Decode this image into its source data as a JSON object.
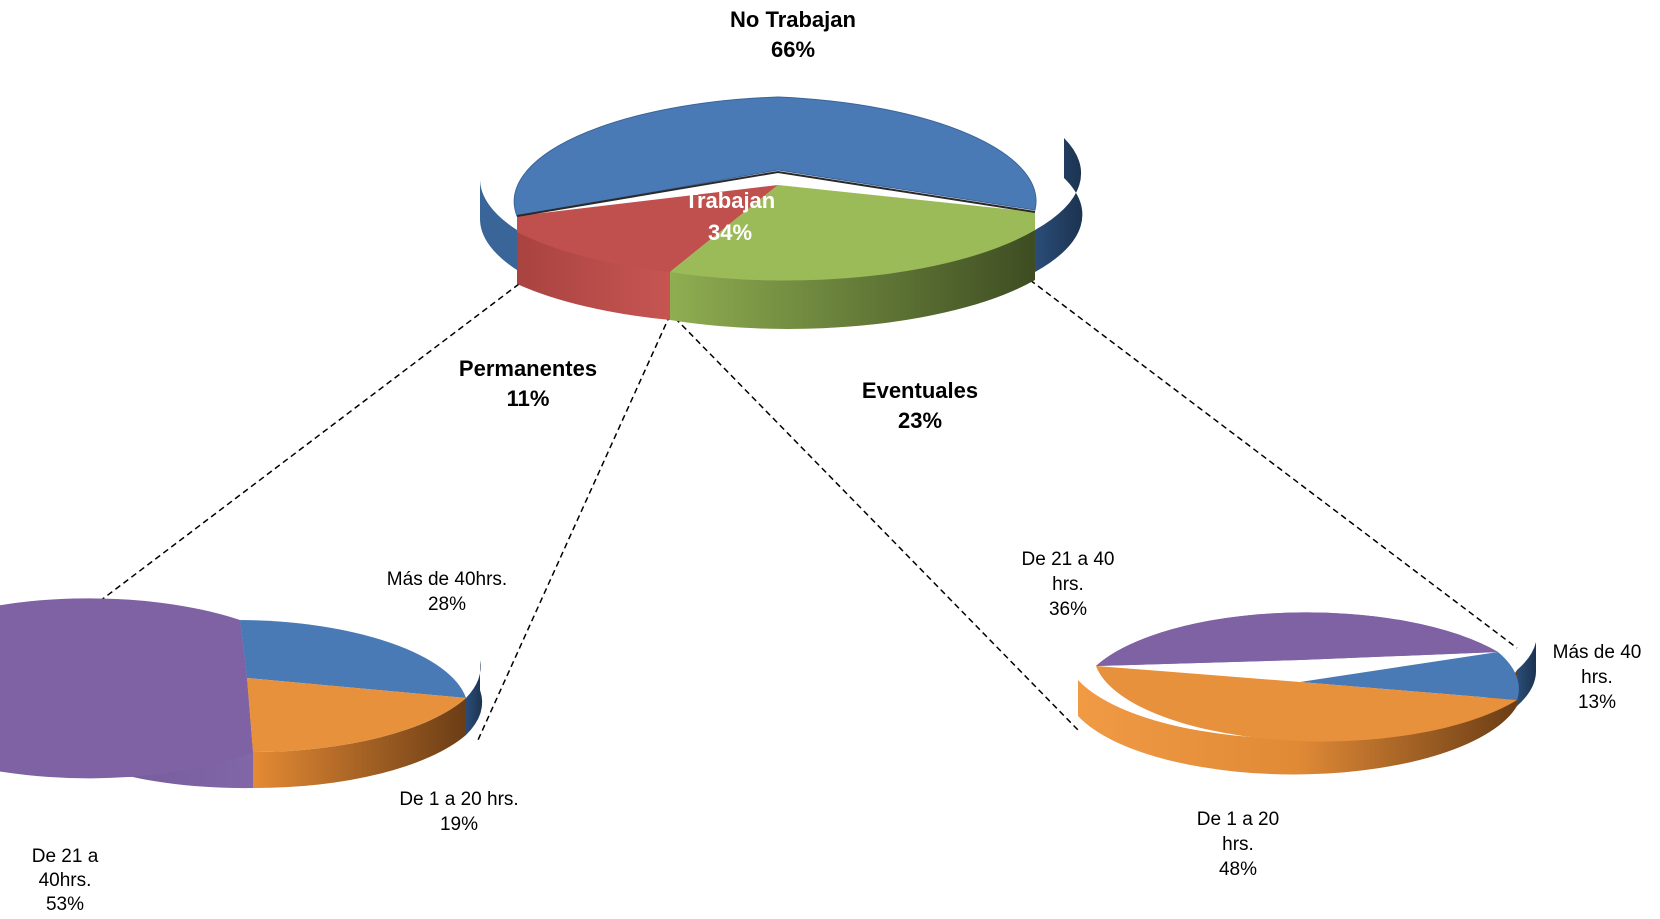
{
  "chart_data": [
    {
      "type": "pie",
      "role": "main",
      "slices": [
        {
          "label": "No Trabajan",
          "value": 66,
          "display": "66%",
          "color": "#4a7ab5"
        },
        {
          "label": "Permanentes",
          "value": 11,
          "display": "11%",
          "color": "#c0504d"
        },
        {
          "label": "Eventuales",
          "value": 23,
          "display": "23%",
          "color": "#9bbb59"
        }
      ],
      "group_label": {
        "label": "Trabajan",
        "value": 34,
        "display": "34%"
      }
    },
    {
      "type": "pie",
      "role": "breakdown",
      "parent": "Permanentes",
      "slices": [
        {
          "label": "Más de 40hrs.",
          "value": 28,
          "display": "28%",
          "color": "#4a7ab5"
        },
        {
          "label": "De 1 a 20 hrs.",
          "value": 19,
          "display": "19%",
          "color": "#e8913c"
        },
        {
          "label": "De 21 a 40hrs.",
          "value": 53,
          "display": "53%",
          "color": "#7f62a4"
        }
      ]
    },
    {
      "type": "pie",
      "role": "breakdown",
      "parent": "Eventuales",
      "slices": [
        {
          "label": "Más de 40 hrs.",
          "value": 13,
          "display": "13%",
          "color": "#4a7ab5"
        },
        {
          "label": "De 1 a 20 hrs.",
          "value": 48,
          "display": "48%",
          "color": "#e8913c"
        },
        {
          "label": "De 21 a 40 hrs.",
          "value": 36,
          "display": "36%",
          "color": "#7f62a4"
        }
      ]
    }
  ]
}
